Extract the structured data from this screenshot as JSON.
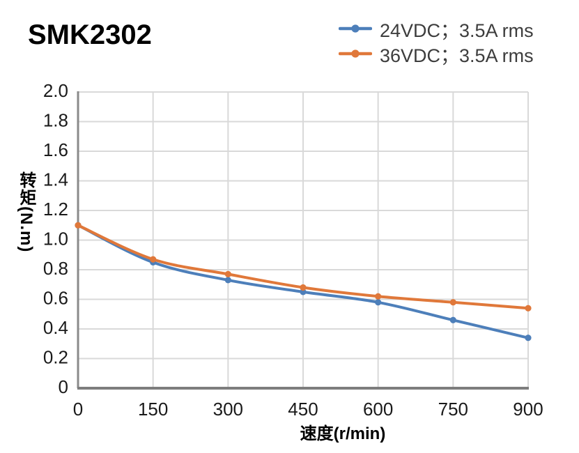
{
  "title": "SMK2302",
  "legend": {
    "items": [
      {
        "label": "24VDC；3.5A rms",
        "color": "#4d7fba"
      },
      {
        "label": "36VDC；3.5A rms",
        "color": "#e0783a"
      }
    ]
  },
  "axes": {
    "x_title": "速度(r/min)",
    "y_title": "转矩(N.m)"
  },
  "chart_data": {
    "type": "line",
    "title": "SMK2302",
    "xlabel": "速度(r/min)",
    "ylabel": "转矩(N.m)",
    "x": [
      0,
      150,
      300,
      450,
      600,
      750,
      900
    ],
    "series": [
      {
        "name": "24VDC；3.5A rms",
        "color": "#4d7fba",
        "values": [
          1.1,
          0.85,
          0.73,
          0.65,
          0.58,
          0.46,
          0.34
        ]
      },
      {
        "name": "36VDC；3.5A rms",
        "color": "#e0783a",
        "values": [
          1.1,
          0.87,
          0.77,
          0.68,
          0.62,
          0.58,
          0.54
        ]
      }
    ],
    "xlim": [
      0,
      900
    ],
    "ylim": [
      0,
      2.0
    ],
    "x_ticks": [
      "0",
      "150",
      "300",
      "450",
      "600",
      "750",
      "900"
    ],
    "y_ticks": [
      "2.0",
      "1.8",
      "1.6",
      "1.4",
      "1.2",
      "1.0",
      "0.8",
      "0.6",
      "0.4",
      "0.2",
      "0"
    ],
    "y_tick_step": 0.2,
    "grid": true,
    "smooth": true,
    "legend_position": "top-right",
    "colors": {
      "gridline": "#d9d9d9",
      "axis_line": "#8a8a8a",
      "bottom_axis_line": "#7d7d7d",
      "tick_text": "#1a1a1a"
    }
  }
}
